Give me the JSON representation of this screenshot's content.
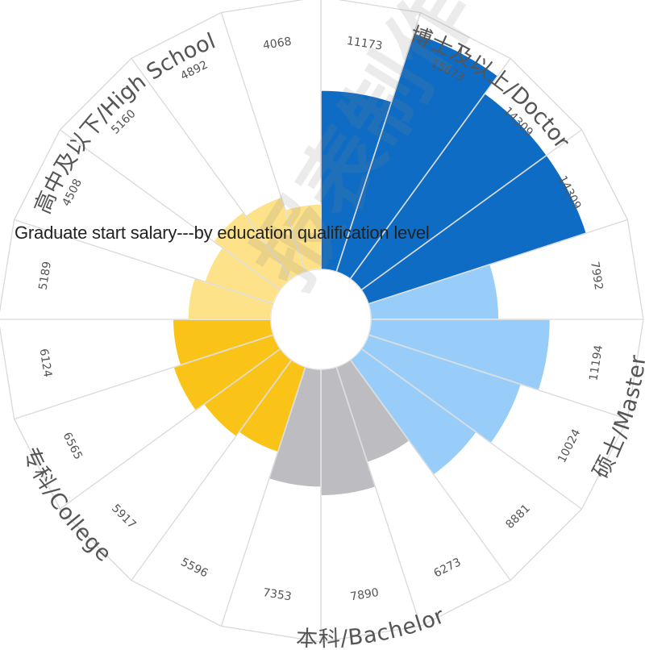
{
  "chart_data": {
    "type": "polar-bar",
    "title": "Graduate start salary---by education qualification level",
    "max_value": 16000,
    "groups": [
      {
        "name": "博士及以上/Doctor",
        "color": "#0e6cc4",
        "values": [
          11173,
          15673,
          14309,
          14309
        ]
      },
      {
        "name": "硕士/Master",
        "color": "#97cdf8",
        "values": [
          7992,
          11194,
          10024,
          8881
        ]
      },
      {
        "name": "本科/Bachelor",
        "color": "#bdbdc1",
        "values": [
          6273,
          7890,
          7353
        ]
      },
      {
        "name": "专科/College",
        "color": "#f9c317",
        "values": [
          5596,
          5917,
          6565,
          6124
        ]
      },
      {
        "name": "高中及以下/High School",
        "color": "#fde28a",
        "values": [
          5189,
          4508,
          5160,
          4892,
          4068
        ]
      }
    ]
  },
  "watermark": "报表制作"
}
